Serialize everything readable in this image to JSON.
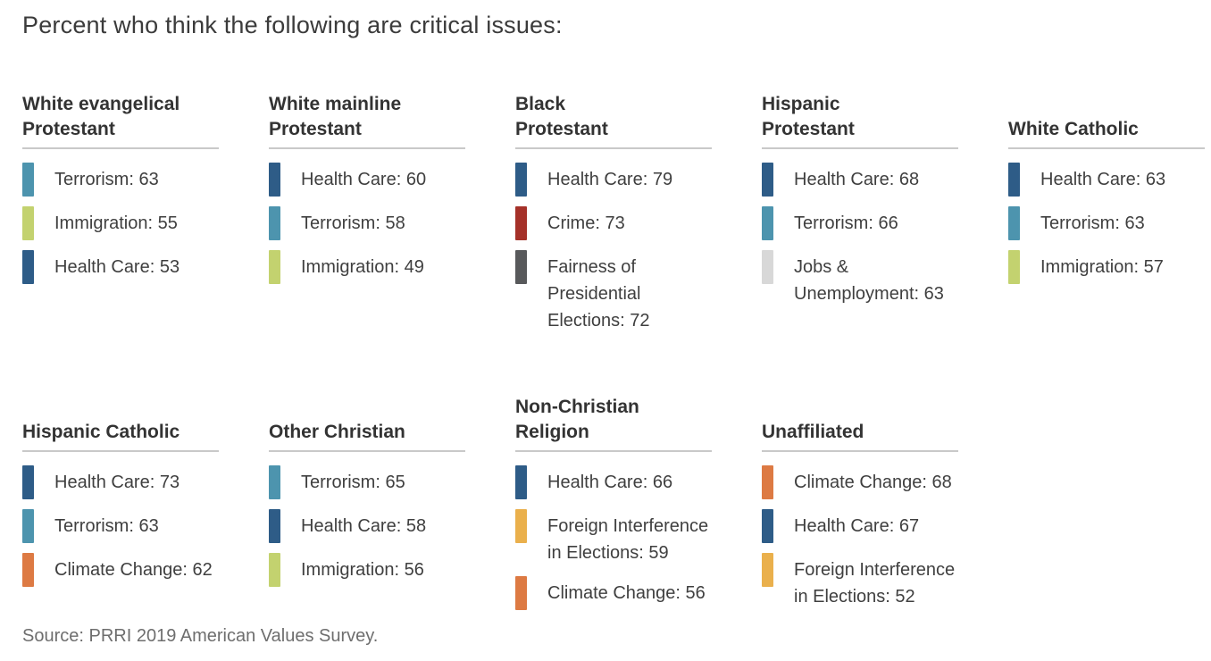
{
  "title": "Percent who think the following are critical issues:",
  "source": "Source: PRRI 2019 American Values Survey.",
  "palette": {
    "health_care": "#2e5c87",
    "terrorism": "#4d94ae",
    "immigration": "#c3d26f",
    "crime": "#a53129",
    "fairness_elections": "#58595b",
    "jobs_unemployment": "#d8d8d8",
    "climate_change": "#dd7a43",
    "foreign_interference": "#eab04c",
    "rule_gray": "#c9c9c9"
  },
  "chart_data": {
    "type": "table",
    "title": "Percent who think the following are critical issues:",
    "source": "Source: PRRI 2019 American Values Survey.",
    "layout": {
      "row1_groups": 5,
      "row2_groups": 4,
      "legend": "color chips per issue"
    },
    "groups": [
      {
        "name": "White evangelical Protestant",
        "header_display": "White evangelical\nProtestant",
        "items": [
          {
            "issue": "Terrorism",
            "value": 63,
            "color": "#4d94ae",
            "display": "Terrorism: 63"
          },
          {
            "issue": "Immigration",
            "value": 55,
            "color": "#c3d26f",
            "display": "Immigration: 55"
          },
          {
            "issue": "Health Care",
            "value": 53,
            "color": "#2e5c87",
            "display": "Health Care: 53"
          }
        ]
      },
      {
        "name": "White mainline Protestant",
        "header_display": "White mainline\nProtestant",
        "items": [
          {
            "issue": "Health Care",
            "value": 60,
            "color": "#2e5c87",
            "display": "Health Care: 60"
          },
          {
            "issue": "Terrorism",
            "value": 58,
            "color": "#4d94ae",
            "display": "Terrorism: 58"
          },
          {
            "issue": "Immigration",
            "value": 49,
            "color": "#c3d26f",
            "display": "Immigration: 49"
          }
        ]
      },
      {
        "name": "Black Protestant",
        "header_display": "Black\nProtestant",
        "items": [
          {
            "issue": "Health Care",
            "value": 79,
            "color": "#2e5c87",
            "display": "Health Care: 79"
          },
          {
            "issue": "Crime",
            "value": 73,
            "color": "#a53129",
            "display": "Crime: 73"
          },
          {
            "issue": "Fairness of Presidential Elections",
            "value": 72,
            "color": "#58595b",
            "display": "Fairness of\nPresidential\nElections: 72"
          }
        ]
      },
      {
        "name": "Hispanic Protestant",
        "header_display": "Hispanic\nProtestant",
        "items": [
          {
            "issue": "Health Care",
            "value": 68,
            "color": "#2e5c87",
            "display": "Health Care: 68"
          },
          {
            "issue": "Terrorism",
            "value": 66,
            "color": "#4d94ae",
            "display": "Terrorism: 66"
          },
          {
            "issue": "Jobs & Unemployment",
            "value": 63,
            "color": "#d8d8d8",
            "display": "Jobs &\nUnemployment: 63"
          }
        ]
      },
      {
        "name": "White Catholic",
        "header_display": "White Catholic",
        "items": [
          {
            "issue": "Health Care",
            "value": 63,
            "color": "#2e5c87",
            "display": "Health Care: 63"
          },
          {
            "issue": "Terrorism",
            "value": 63,
            "color": "#4d94ae",
            "display": "Terrorism: 63"
          },
          {
            "issue": "Immigration",
            "value": 57,
            "color": "#c3d26f",
            "display": "Immigration: 57"
          }
        ]
      },
      {
        "name": "Hispanic Catholic",
        "header_display": "Hispanic Catholic",
        "items": [
          {
            "issue": "Health Care",
            "value": 73,
            "color": "#2e5c87",
            "display": "Health Care: 73"
          },
          {
            "issue": "Terrorism",
            "value": 63,
            "color": "#4d94ae",
            "display": "Terrorism: 63"
          },
          {
            "issue": "Climate Change",
            "value": 62,
            "color": "#dd7a43",
            "display": "Climate Change: 62"
          }
        ]
      },
      {
        "name": "Other Christian",
        "header_display": "Other Christian",
        "items": [
          {
            "issue": "Terrorism",
            "value": 65,
            "color": "#4d94ae",
            "display": "Terrorism: 65"
          },
          {
            "issue": "Health Care",
            "value": 58,
            "color": "#2e5c87",
            "display": "Health Care: 58"
          },
          {
            "issue": "Immigration",
            "value": 56,
            "color": "#c3d26f",
            "display": "Immigration: 56"
          }
        ]
      },
      {
        "name": "Non-Christian Religion",
        "header_display": "Non-Christian\nReligion",
        "items": [
          {
            "issue": "Health Care",
            "value": 66,
            "color": "#2e5c87",
            "display": "Health Care: 66"
          },
          {
            "issue": "Foreign Interference in Elections",
            "value": 59,
            "color": "#eab04c",
            "display": "Foreign Interference\nin Elections: 59"
          },
          {
            "issue": "Climate Change",
            "value": 56,
            "color": "#dd7a43",
            "display": "Climate Change: 56"
          }
        ]
      },
      {
        "name": "Unaffiliated",
        "header_display": "Unaffiliated",
        "items": [
          {
            "issue": "Climate Change",
            "value": 68,
            "color": "#dd7a43",
            "display": "Climate Change: 68"
          },
          {
            "issue": "Health Care",
            "value": 67,
            "color": "#2e5c87",
            "display": "Health Care: 67"
          },
          {
            "issue": "Foreign Interference in Elections",
            "value": 52,
            "color": "#eab04c",
            "display": "Foreign Interference\nin Elections: 52"
          }
        ]
      }
    ]
  }
}
